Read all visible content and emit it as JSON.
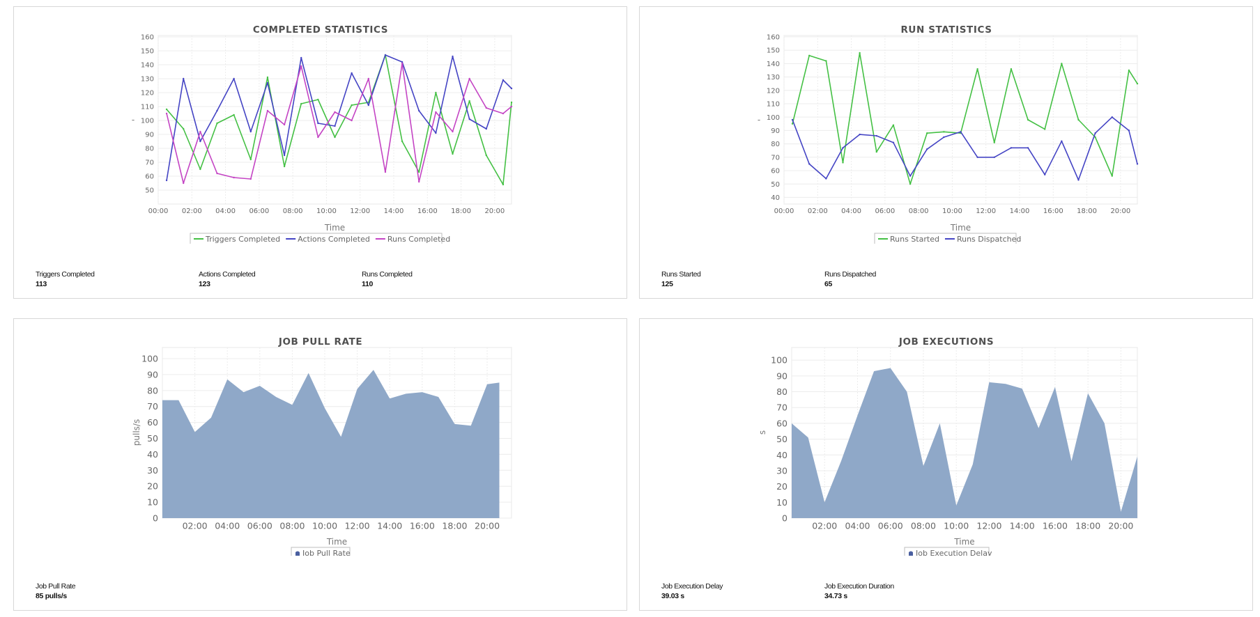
{
  "chart_data": [
    {
      "type": "line",
      "title": "COMPLETED STATISTICS",
      "xlabel": "Time",
      "ylabel": "-",
      "x": [
        "00:30",
        "01:30",
        "02:30",
        "03:30",
        "04:30",
        "05:30",
        "06:30",
        "07:30",
        "08:30",
        "09:30",
        "10:30",
        "11:30",
        "12:30",
        "13:30",
        "14:30",
        "15:30",
        "16:30",
        "17:30",
        "18:30",
        "19:30",
        "20:30",
        "21:00"
      ],
      "x_ticks": [
        "00:00",
        "02:00",
        "04:00",
        "06:00",
        "08:00",
        "10:00",
        "12:00",
        "14:00",
        "16:00",
        "18:00",
        "20:00"
      ],
      "y_ticks": [
        50,
        60,
        70,
        80,
        90,
        100,
        110,
        120,
        130,
        140,
        150,
        160
      ],
      "ylim": [
        40,
        161
      ],
      "grid": true,
      "legend": "bottom",
      "series": [
        {
          "name": "Triggers Completed",
          "color": "#44c044",
          "values": [
            108,
            94,
            65,
            98,
            104,
            72,
            131,
            67,
            112,
            115,
            88,
            111,
            113,
            147,
            85,
            63,
            120,
            76,
            114,
            75,
            54,
            113
          ]
        },
        {
          "name": "Actions Completed",
          "color": "#4444c4",
          "values": [
            57,
            130,
            85,
            107,
            130,
            92,
            127,
            75,
            145,
            98,
            96,
            134,
            111,
            147,
            142,
            107,
            91,
            146,
            101,
            94,
            129,
            123
          ]
        },
        {
          "name": "Runs Completed",
          "color": "#c444c4",
          "values": [
            105,
            55,
            92,
            62,
            59,
            58,
            107,
            97,
            139,
            88,
            106,
            100,
            130,
            63,
            141,
            56,
            106,
            92,
            130,
            109,
            105,
            110
          ]
        }
      ]
    },
    {
      "type": "line",
      "title": "RUN STATISTICS",
      "xlabel": "Time",
      "ylabel": "-",
      "x": [
        "00:30",
        "01:30",
        "02:30",
        "03:30",
        "04:30",
        "05:30",
        "06:30",
        "07:30",
        "08:30",
        "09:30",
        "10:30",
        "11:30",
        "12:30",
        "13:30",
        "14:30",
        "15:30",
        "16:30",
        "17:30",
        "18:30",
        "19:30",
        "20:30",
        "21:00"
      ],
      "x_ticks": [
        "00:00",
        "02:00",
        "04:00",
        "06:00",
        "08:00",
        "10:00",
        "12:00",
        "14:00",
        "16:00",
        "18:00",
        "20:00"
      ],
      "y_ticks": [
        40,
        50,
        60,
        70,
        80,
        90,
        100,
        110,
        120,
        130,
        140,
        150,
        160
      ],
      "ylim": [
        35,
        161
      ],
      "grid": true,
      "legend": "bottom",
      "series": [
        {
          "name": "Runs Started",
          "color": "#44c044",
          "values": [
            95,
            146,
            142,
            66,
            148,
            74,
            94,
            50,
            88,
            89,
            88,
            136,
            81,
            136,
            98,
            91,
            140,
            98,
            85,
            56,
            135,
            125
          ]
        },
        {
          "name": "Runs Dispatched",
          "color": "#4444c4",
          "values": [
            98,
            65,
            54,
            77,
            87,
            86,
            81,
            56,
            76,
            85,
            89,
            70,
            70,
            77,
            77,
            57,
            82,
            53,
            88,
            100,
            90,
            65
          ]
        }
      ]
    },
    {
      "type": "area",
      "title": "JOB PULL RATE",
      "xlabel": "Time",
      "ylabel": "pulls/s",
      "x": [
        "00:00",
        "01:00",
        "02:00",
        "03:00",
        "04:00",
        "05:00",
        "06:00",
        "07:00",
        "08:00",
        "09:00",
        "10:00",
        "11:00",
        "12:00",
        "13:00",
        "14:00",
        "15:00",
        "16:00",
        "17:00",
        "18:00",
        "19:00",
        "20:00",
        "20:45"
      ],
      "x_ticks": [
        "02:00",
        "04:00",
        "06:00",
        "08:00",
        "10:00",
        "12:00",
        "14:00",
        "16:00",
        "18:00",
        "20:00"
      ],
      "y_ticks": [
        0,
        10,
        20,
        30,
        40,
        50,
        60,
        70,
        80,
        90,
        100
      ],
      "ylim": [
        0,
        107
      ],
      "grid": true,
      "legend": "bottom",
      "series": [
        {
          "name": "Job Pull Rate",
          "color": "#8fa8c8",
          "legend_color": "#4a5fa0",
          "values": [
            74,
            74,
            54,
            63,
            87,
            79,
            83,
            76,
            71,
            91,
            69,
            51,
            81,
            93,
            75,
            78,
            79,
            76,
            59,
            58,
            84,
            85
          ]
        }
      ]
    },
    {
      "type": "area",
      "title": "JOB EXECUTIONS",
      "xlabel": "Time",
      "ylabel": "s",
      "x": [
        "00:00",
        "01:00",
        "02:00",
        "03:00",
        "04:00",
        "05:00",
        "06:00",
        "07:00",
        "08:00",
        "09:00",
        "10:00",
        "11:00",
        "12:00",
        "13:00",
        "14:00",
        "15:00",
        "16:00",
        "17:00",
        "18:00",
        "19:00",
        "20:00",
        "21:00"
      ],
      "x_ticks": [
        "02:00",
        "04:00",
        "06:00",
        "08:00",
        "10:00",
        "12:00",
        "14:00",
        "16:00",
        "18:00",
        "20:00"
      ],
      "y_ticks": [
        0,
        10,
        20,
        30,
        40,
        50,
        60,
        70,
        80,
        90,
        100
      ],
      "ylim": [
        0,
        108
      ],
      "grid": true,
      "legend": "bottom",
      "series": [
        {
          "name": "Job Execution Delay",
          "color": "#8fa8c8",
          "legend_color": "#4a5fa0",
          "values": [
            60,
            51,
            10,
            36,
            65,
            93,
            95,
            80,
            33,
            60,
            8,
            34,
            86,
            85,
            82,
            57,
            83,
            36,
            79,
            60,
            4,
            39
          ]
        }
      ]
    }
  ],
  "stats": [
    [
      {
        "label": "Triggers Completed",
        "value": "113"
      },
      {
        "label": "Actions Completed",
        "value": "123"
      },
      {
        "label": "Runs Completed",
        "value": "110"
      }
    ],
    [
      {
        "label": "Runs Started",
        "value": "125"
      },
      {
        "label": "Runs Dispatched",
        "value": "65"
      }
    ],
    [
      {
        "label": "Job Pull Rate",
        "value": "85 pulls/s"
      }
    ],
    [
      {
        "label": "Job Execution Delay",
        "value": "39.03 s"
      },
      {
        "label": "Job Execution Duration",
        "value": "34.73 s"
      }
    ]
  ]
}
